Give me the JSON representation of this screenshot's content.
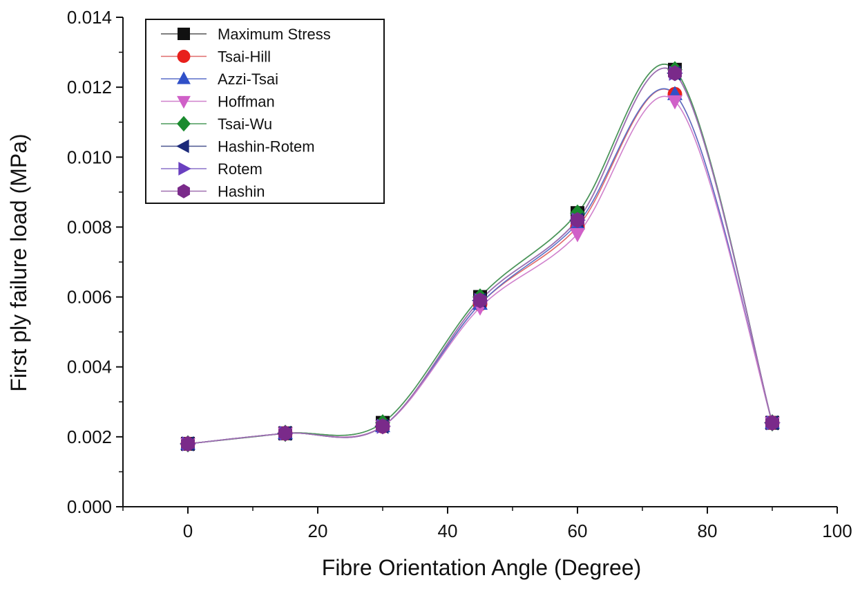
{
  "chart_data": {
    "type": "line",
    "title": "",
    "xlabel": "Fibre Orientation Angle (Degree)",
    "ylabel": "First ply failure load (MPa)",
    "xlim": [
      -10,
      100
    ],
    "ylim": [
      0,
      0.014
    ],
    "x_ticks": [
      0,
      20,
      40,
      60,
      80,
      100
    ],
    "x_tick_labels": [
      "0",
      "20",
      "40",
      "60",
      "80",
      "100"
    ],
    "y_ticks": [
      0,
      0.002,
      0.004,
      0.006,
      0.008,
      0.01,
      0.012,
      0.014
    ],
    "y_tick_labels": [
      "0.000",
      "0.002",
      "0.004",
      "0.006",
      "0.008",
      "0.010",
      "0.012",
      "0.014"
    ],
    "grid": false,
    "legend_position": "top-left",
    "x": [
      0,
      15,
      30,
      45,
      60,
      75,
      90
    ],
    "series": [
      {
        "name": "Maximum Stress",
        "marker": "square",
        "color": "#111111",
        "line_color": "#555555",
        "values": [
          0.0018,
          0.0021,
          0.0024,
          0.006,
          0.0084,
          0.0125,
          0.0024
        ]
      },
      {
        "name": "Tsai-Hill",
        "marker": "circle",
        "color": "#e8201c",
        "line_color": "#e06b6b",
        "values": [
          0.0018,
          0.0021,
          0.0023,
          0.0058,
          0.008,
          0.0118,
          0.0024
        ]
      },
      {
        "name": "Azzi-Tsai",
        "marker": "triangle-up",
        "color": "#3050c8",
        "line_color": "#5a6fc8",
        "values": [
          0.0018,
          0.0021,
          0.0023,
          0.0058,
          0.0081,
          0.0118,
          0.0024
        ]
      },
      {
        "name": "Hoffman",
        "marker": "triangle-down",
        "color": "#d060c8",
        "line_color": "#d080cc",
        "values": [
          0.0018,
          0.0021,
          0.0023,
          0.0057,
          0.0078,
          0.0116,
          0.0024
        ]
      },
      {
        "name": "Tsai-Wu",
        "marker": "diamond",
        "color": "#1a8a2e",
        "line_color": "#4a9a5a",
        "values": [
          0.0018,
          0.0021,
          0.0024,
          0.006,
          0.0084,
          0.0125,
          0.0024
        ]
      },
      {
        "name": "Hashin-Rotem",
        "marker": "triangle-left",
        "color": "#1c2a7a",
        "line_color": "#4a5590",
        "values": [
          0.0018,
          0.0021,
          0.0023,
          0.0059,
          0.0082,
          0.0124,
          0.0024
        ]
      },
      {
        "name": "Rotem",
        "marker": "triangle-right",
        "color": "#6a40c0",
        "line_color": "#8a70c8",
        "values": [
          0.0018,
          0.0021,
          0.0023,
          0.0059,
          0.0082,
          0.0124,
          0.0024
        ]
      },
      {
        "name": "Hashin",
        "marker": "hexagon",
        "color": "#7a2a8a",
        "line_color": "#a070b0",
        "values": [
          0.0018,
          0.0021,
          0.0023,
          0.0059,
          0.0082,
          0.0124,
          0.0024
        ]
      }
    ]
  }
}
